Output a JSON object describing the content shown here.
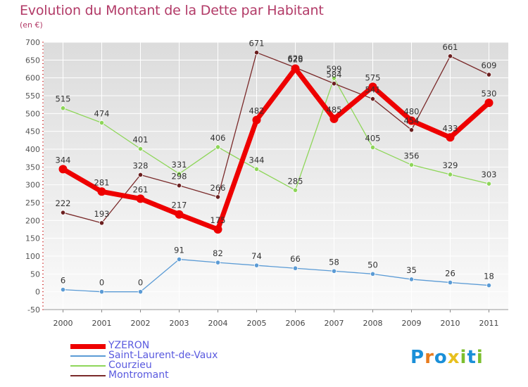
{
  "title": "Evolution du Montant de la Dette par Habitant",
  "unit": "(en €)",
  "logo": {
    "text": "Proxiti",
    "letters": [
      "P",
      "r",
      "o",
      "x",
      "i",
      "t",
      "i"
    ],
    "colors": [
      "#1a8fd8",
      "#e87c1e",
      "#1a8fd8",
      "#e8c01e",
      "#7cbf2e",
      "#1a8fd8",
      "#7cbf2e"
    ]
  },
  "chart_data": {
    "type": "line",
    "x": [
      "2000",
      "2001",
      "2002",
      "2003",
      "2004",
      "2005",
      "2006",
      "2007",
      "2008",
      "2009",
      "2010",
      "2011"
    ],
    "ylim": [
      -50,
      700
    ],
    "yticks": [
      "-50",
      "0",
      "50",
      "100",
      "150",
      "200",
      "250",
      "300",
      "350",
      "400",
      "450",
      "500",
      "550",
      "600",
      "650",
      "700"
    ],
    "grid": true,
    "legend_placement": "bottom-left",
    "series": [
      {
        "name": "YZERON",
        "color": "#ee0000",
        "width": 7,
        "values": [
          344,
          281,
          261,
          217,
          175,
          482,
          626,
          485,
          575,
          480,
          433,
          530
        ],
        "labels": [
          "344",
          "281",
          "261",
          "217",
          "175",
          "482",
          "626",
          "485",
          "575",
          "480",
          "433",
          "530"
        ]
      },
      {
        "name": "Saint-Laurent-de-Vaux",
        "color": "#5b9bd5",
        "width": 1.3,
        "values": [
          6,
          0,
          0,
          91,
          82,
          74,
          66,
          58,
          50,
          35,
          26,
          18
        ],
        "labels": [
          "6",
          "0",
          "0",
          "91",
          "82",
          "74",
          "66",
          "58",
          "50",
          "35",
          "26",
          "18"
        ]
      },
      {
        "name": "Courzieu",
        "color": "#8ed659",
        "width": 1.3,
        "values": [
          515,
          474,
          401,
          331,
          406,
          344,
          285,
          599,
          405,
          356,
          329,
          303
        ],
        "labels": [
          "515",
          "474",
          "401",
          "331",
          "406",
          "344",
          "285",
          "599",
          "405",
          "356",
          "329",
          "303"
        ]
      },
      {
        "name": "Montromant",
        "color": "#7a2a2a",
        "width": 1.3,
        "values": [
          222,
          193,
          328,
          298,
          266,
          671,
          629,
          584,
          541,
          454,
          661,
          609
        ],
        "labels": [
          "222",
          "193",
          "328",
          "298",
          "266",
          "671",
          "629",
          "584",
          "541",
          "454",
          "661",
          "609"
        ]
      }
    ]
  }
}
